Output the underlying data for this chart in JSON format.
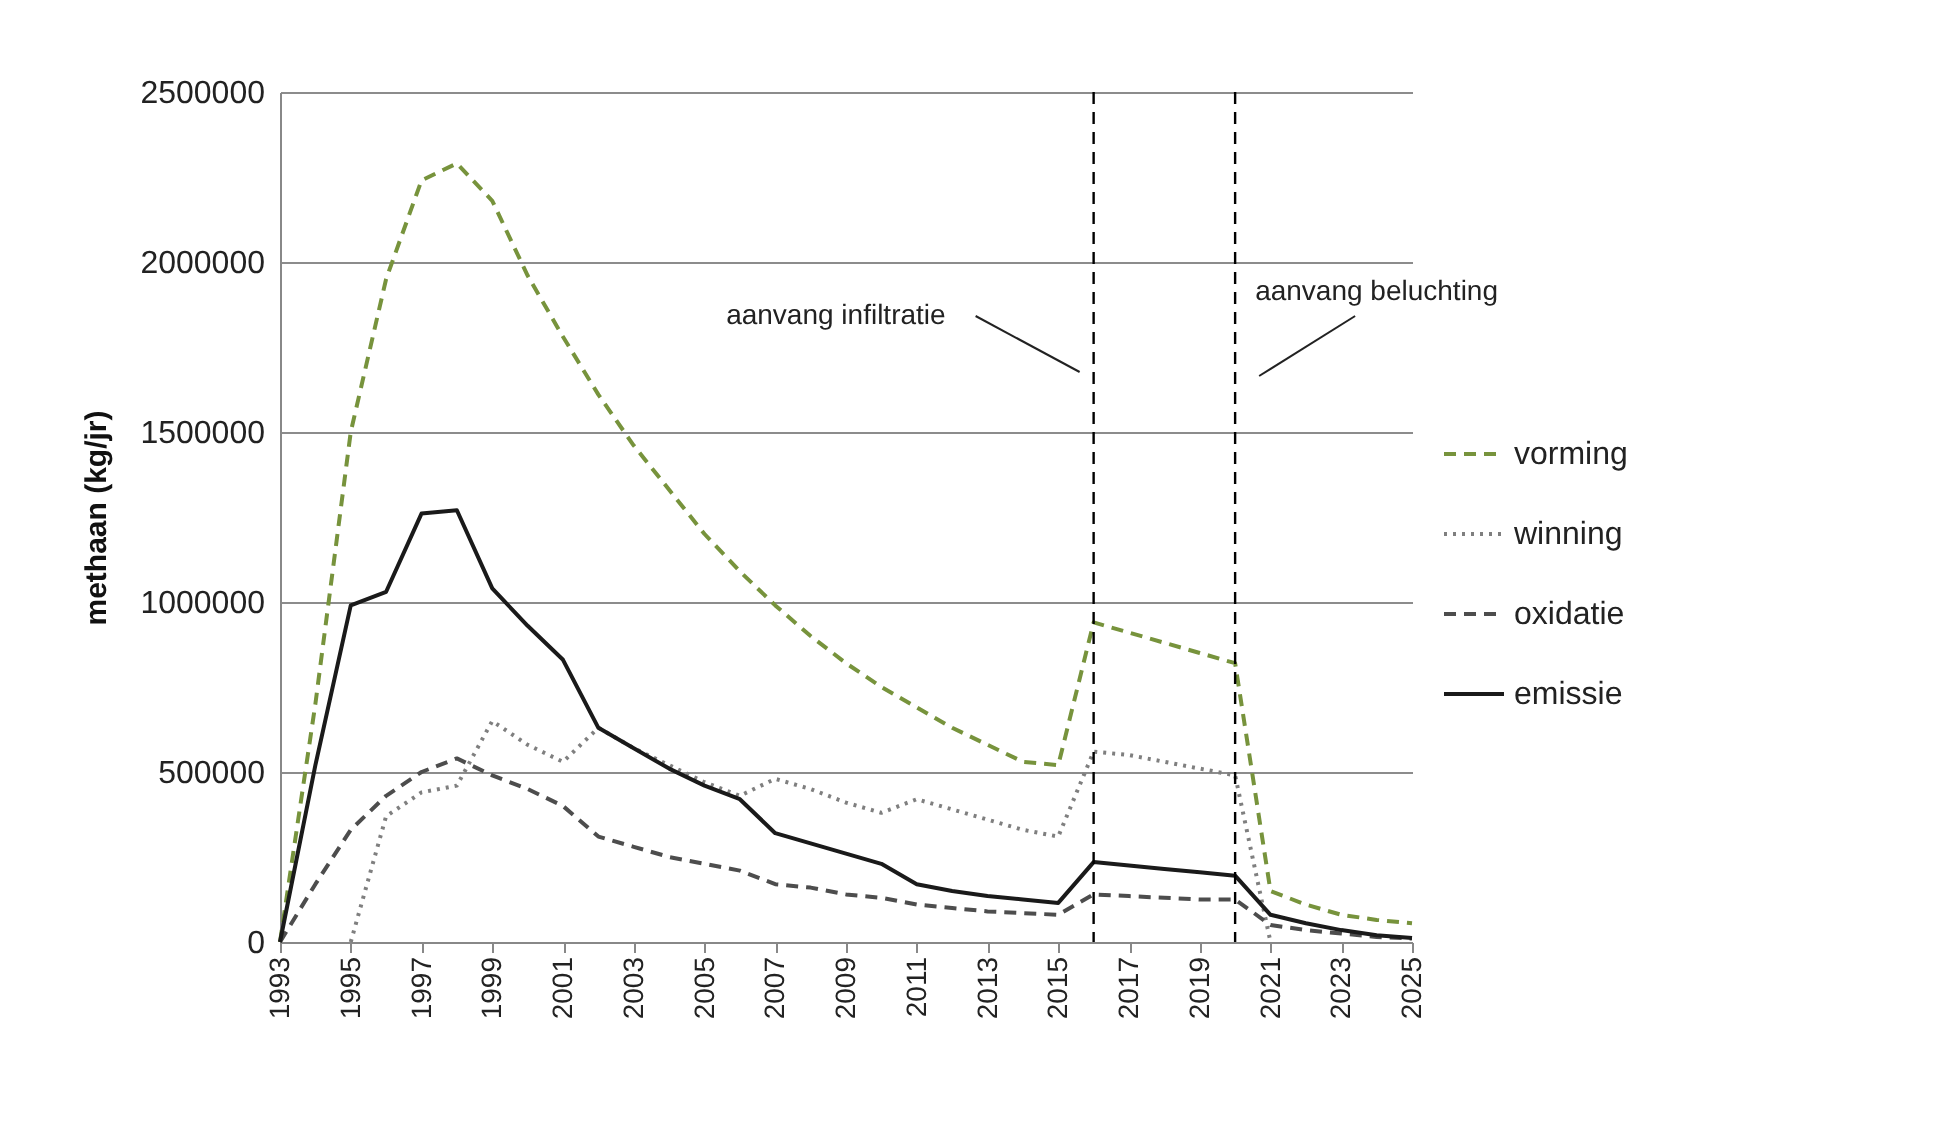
{
  "chart_data": {
    "type": "line",
    "ylabel": "methaan (kg/jr)",
    "x": [
      1993,
      1994,
      1995,
      1996,
      1997,
      1998,
      1999,
      2000,
      2001,
      2002,
      2003,
      2004,
      2005,
      2006,
      2007,
      2008,
      2009,
      2010,
      2011,
      2012,
      2013,
      2014,
      2015,
      2016,
      2017,
      2018,
      2019,
      2020,
      2021,
      2022,
      2023,
      2024,
      2025
    ],
    "series": [
      {
        "name": "vorming",
        "color": "#77933c",
        "line_style": "dashed",
        "values": [
          0,
          700000,
          1500000,
          1950000,
          2240000,
          2290000,
          2180000,
          1960000,
          1780000,
          1610000,
          1460000,
          1330000,
          1200000,
          1090000,
          990000,
          900000,
          820000,
          750000,
          690000,
          630000,
          580000,
          530000,
          520000,
          940000,
          910000,
          880000,
          850000,
          820000,
          150000,
          110000,
          80000,
          65000,
          55000
        ]
      },
      {
        "name": "winning",
        "color": "#7f7f7f",
        "line_style": "dotted",
        "values": [
          null,
          null,
          0,
          370000,
          440000,
          460000,
          650000,
          580000,
          530000,
          630000,
          570000,
          520000,
          470000,
          430000,
          480000,
          450000,
          410000,
          380000,
          420000,
          390000,
          360000,
          330000,
          310000,
          560000,
          550000,
          530000,
          510000,
          490000,
          0,
          null,
          null,
          null,
          null
        ]
      },
      {
        "name": "oxidatie",
        "color": "#4d4d4d",
        "line_style": "dashed",
        "values": [
          0,
          170000,
          330000,
          430000,
          500000,
          540000,
          490000,
          450000,
          400000,
          310000,
          280000,
          250000,
          230000,
          210000,
          170000,
          160000,
          140000,
          130000,
          110000,
          100000,
          90000,
          85000,
          80000,
          140000,
          135000,
          130000,
          125000,
          125000,
          50000,
          35000,
          25000,
          15000,
          10000
        ]
      },
      {
        "name": "emissie",
        "color": "#1a1a1a",
        "line_style": "solid",
        "values": [
          0,
          520000,
          990000,
          1030000,
          1260000,
          1270000,
          1040000,
          930000,
          830000,
          630000,
          570000,
          510000,
          460000,
          420000,
          320000,
          290000,
          260000,
          230000,
          170000,
          150000,
          135000,
          125000,
          115000,
          235000,
          225000,
          215000,
          205000,
          195000,
          80000,
          55000,
          35000,
          20000,
          12000
        ]
      }
    ],
    "xlim": [
      1993,
      2025
    ],
    "xticks": [
      1993,
      1995,
      1997,
      1999,
      2001,
      2003,
      2005,
      2007,
      2009,
      2011,
      2013,
      2015,
      2017,
      2019,
      2021,
      2023,
      2025
    ],
    "ylim": [
      0,
      2500000
    ],
    "yticks": [
      0,
      500000,
      1000000,
      1500000,
      2000000,
      2500000
    ],
    "grid": "y",
    "legend": "right",
    "marker": "none",
    "ref_lines": [
      {
        "axis": "x",
        "value": 2016,
        "label": "aanvang infiltratie",
        "line_style": "dashed",
        "color": "#000000"
      },
      {
        "axis": "x",
        "value": 2020,
        "label": "aanvang beluchting",
        "line_style": "dashed",
        "color": "#000000"
      }
    ]
  }
}
